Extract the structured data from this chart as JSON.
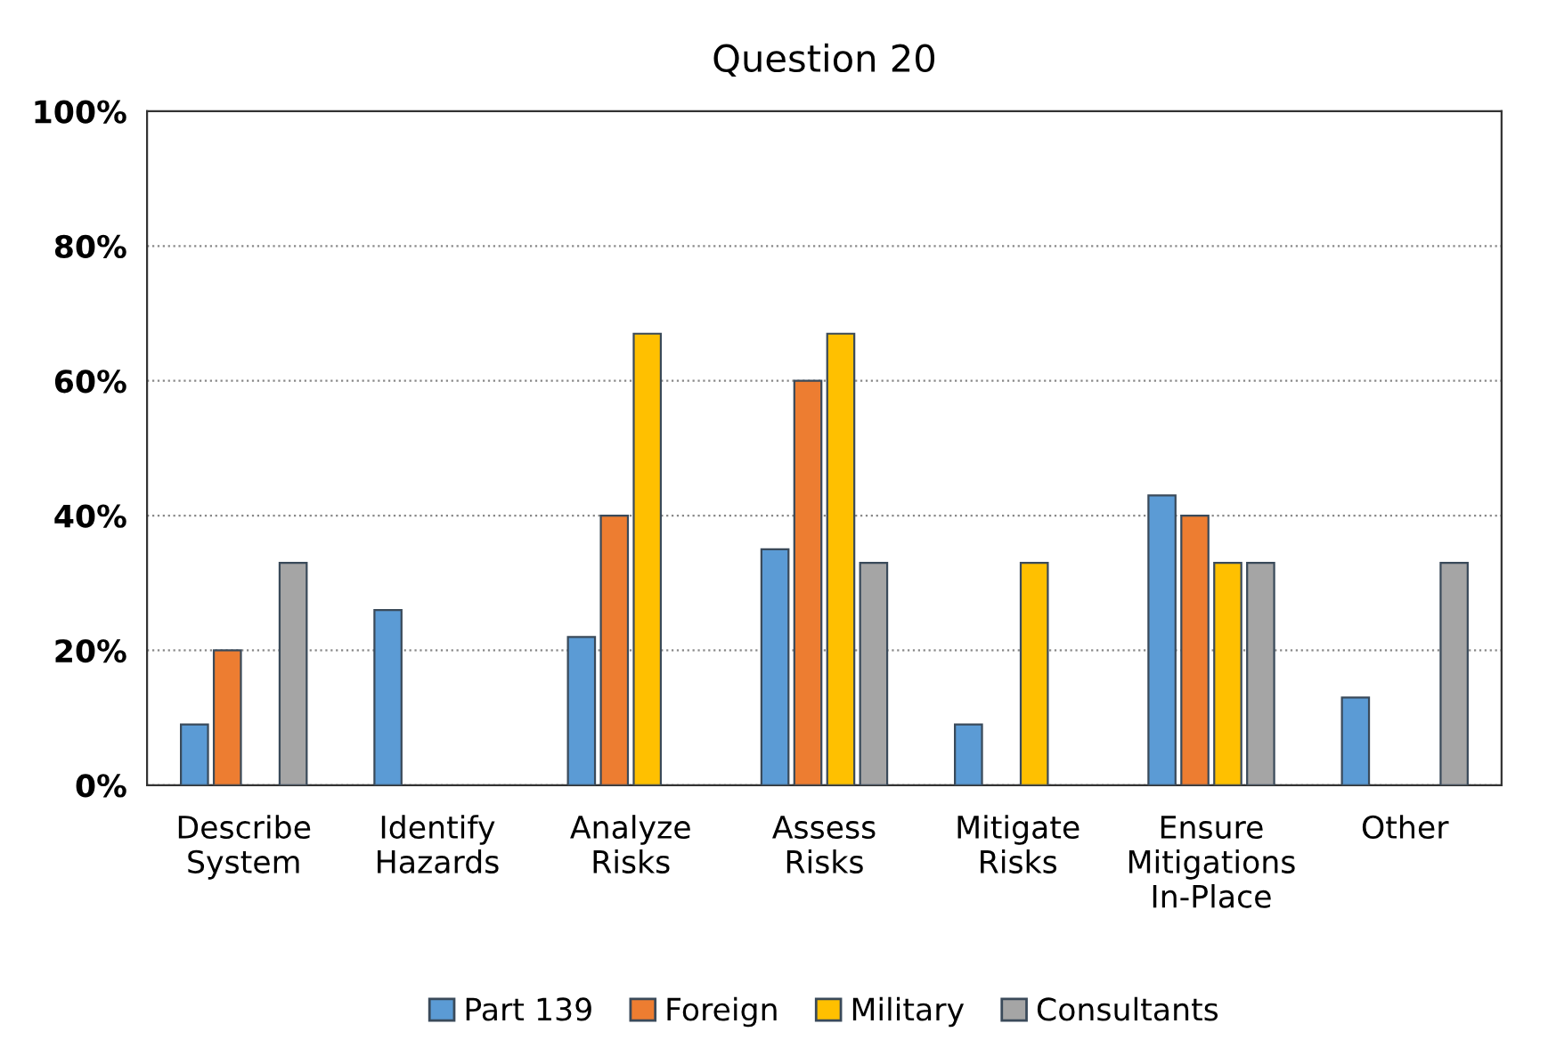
{
  "chart_data": {
    "type": "bar",
    "title": "Question 20",
    "categories": [
      "Describe\nSystem",
      "Identify\nHazards",
      "Analyze\nRisks",
      "Assess\nRisks",
      "Mitigate\nRisks",
      "Ensure\nMitigations\nIn-Place",
      "Other"
    ],
    "series": [
      {
        "name": "Part 139",
        "color": "#5b9bd5",
        "values": [
          9,
          26,
          22,
          35,
          9,
          43,
          13
        ]
      },
      {
        "name": "Foreign",
        "color": "#ed7d31",
        "values": [
          20,
          0,
          40,
          60,
          0,
          40,
          0
        ]
      },
      {
        "name": "Military",
        "color": "#ffc000",
        "values": [
          0,
          0,
          67,
          67,
          33,
          33,
          0
        ]
      },
      {
        "name": "Consultants",
        "color": "#a5a5a5",
        "values": [
          33,
          0,
          0,
          33,
          0,
          33,
          33
        ]
      }
    ],
    "ylim": [
      0,
      100
    ],
    "yticks": [
      {
        "value": 0,
        "label": "0%"
      },
      {
        "value": 20,
        "label": "20%"
      },
      {
        "value": 40,
        "label": "40%"
      },
      {
        "value": 60,
        "label": "60%"
      },
      {
        "value": 80,
        "label": "80%"
      },
      {
        "value": 100,
        "label": "100%"
      }
    ],
    "grid": "y",
    "legend": "bottom"
  }
}
